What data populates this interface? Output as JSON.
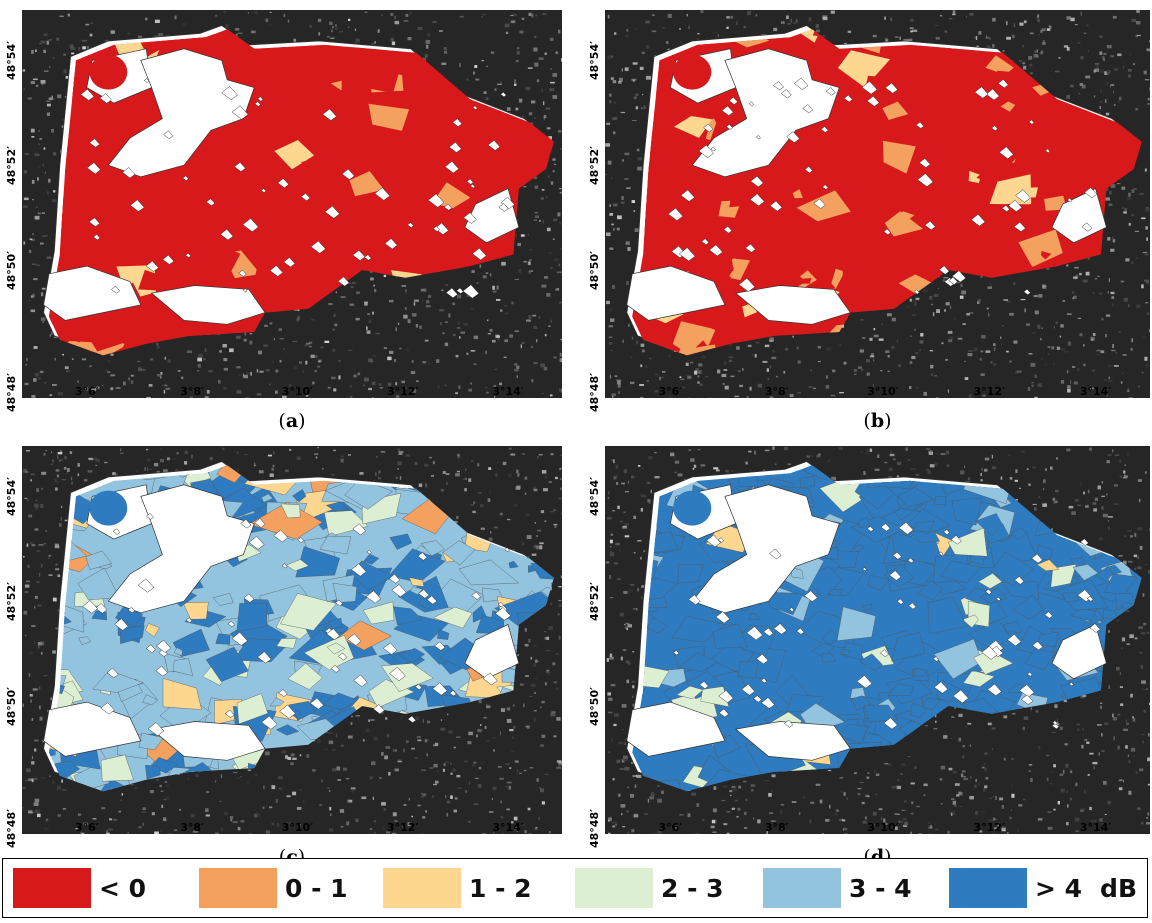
{
  "panels": [
    {
      "id": "a",
      "caption_open": "(",
      "caption_letter": "a",
      "caption_close": ")",
      "scheme": "red"
    },
    {
      "id": "b",
      "caption_open": "(",
      "caption_letter": "b",
      "caption_close": ")",
      "scheme": "red-mixed"
    },
    {
      "id": "c",
      "caption_open": "(",
      "caption_letter": "c",
      "caption_close": ")",
      "scheme": "blue-mixed"
    },
    {
      "id": "d",
      "caption_open": "(",
      "caption_letter": "d",
      "caption_close": ")",
      "scheme": "blue"
    }
  ],
  "latitude_labels": [
    "48°54′",
    "48°52′",
    "48°50′",
    "48°48′"
  ],
  "longitude_labels": [
    "3°6′",
    "3°8′",
    "3°10′",
    "3°12′",
    "3°14′"
  ],
  "legend": {
    "unit": "dB",
    "classes": [
      {
        "label": "< 0",
        "color": "#d7191c"
      },
      {
        "label": "0 - 1",
        "color": "#f4a05f"
      },
      {
        "label": "1 - 2",
        "color": "#fdd68f"
      },
      {
        "label": "2 - 3",
        "color": "#dcefd2"
      },
      {
        "label": "3 - 4",
        "color": "#92c4e0"
      },
      {
        "label": "> 4",
        "color": "#2e7bbf"
      }
    ]
  },
  "colors": {
    "background_sar": "#262626",
    "mask": "#ffffff",
    "outline": "#333333"
  }
}
